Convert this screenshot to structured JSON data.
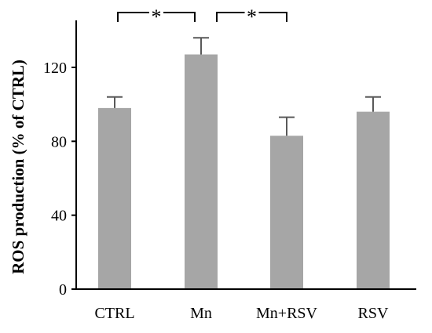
{
  "chart_data": {
    "type": "bar",
    "categories": [
      "CTRL",
      "Mn",
      "Mn+RSV",
      "RSV"
    ],
    "values": [
      98,
      127,
      83,
      96
    ],
    "errors": [
      6,
      9,
      10,
      8
    ],
    "xlabel": "",
    "ylabel": "ROS production (% of CTRL)",
    "ylim": [
      0,
      150
    ],
    "yticks": [
      0,
      40,
      80,
      120
    ],
    "ytick_labels": [
      "0",
      "40",
      "80",
      "120"
    ],
    "grid": false,
    "bar_color": "#a6a6a6",
    "significance": [
      {
        "from": "CTRL",
        "to": "Mn",
        "label": "*"
      },
      {
        "from": "Mn",
        "to": "Mn+RSV",
        "label": "*"
      }
    ]
  }
}
